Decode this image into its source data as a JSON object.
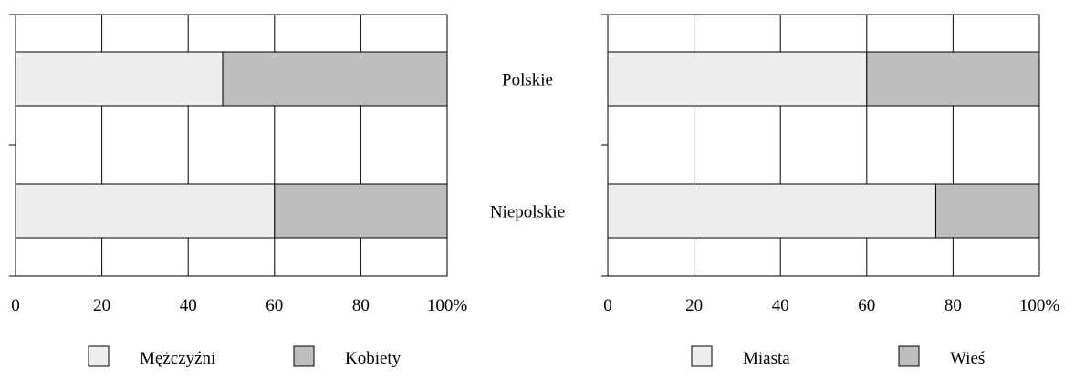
{
  "chart_data": [
    {
      "type": "bar",
      "orientation": "horizontal",
      "stacked": true,
      "categories": [
        "Polskie",
        "Niepolskie"
      ],
      "series": [
        {
          "name": "Mężczyźni",
          "values": [
            48,
            60
          ],
          "color": "#eeeeee"
        },
        {
          "name": "Kobiety",
          "values": [
            52,
            40
          ],
          "color": "#bdbdbd"
        }
      ],
      "xlim": [
        0,
        100
      ],
      "xticks": [
        "0",
        "20",
        "40",
        "60",
        "80",
        "100%"
      ],
      "grid": true,
      "legend_position": "bottom"
    },
    {
      "type": "bar",
      "orientation": "horizontal",
      "stacked": true,
      "categories": [
        "Polskie",
        "Niepolskie"
      ],
      "series": [
        {
          "name": "Miasta",
          "values": [
            60,
            76
          ],
          "color": "#eeeeee"
        },
        {
          "name": "Wieś",
          "values": [
            40,
            24
          ],
          "color": "#bdbdbd"
        }
      ],
      "xlim": [
        0,
        100
      ],
      "xticks": [
        "0",
        "20",
        "40",
        "60",
        "80",
        "100%"
      ],
      "grid": true,
      "legend_position": "bottom"
    }
  ]
}
